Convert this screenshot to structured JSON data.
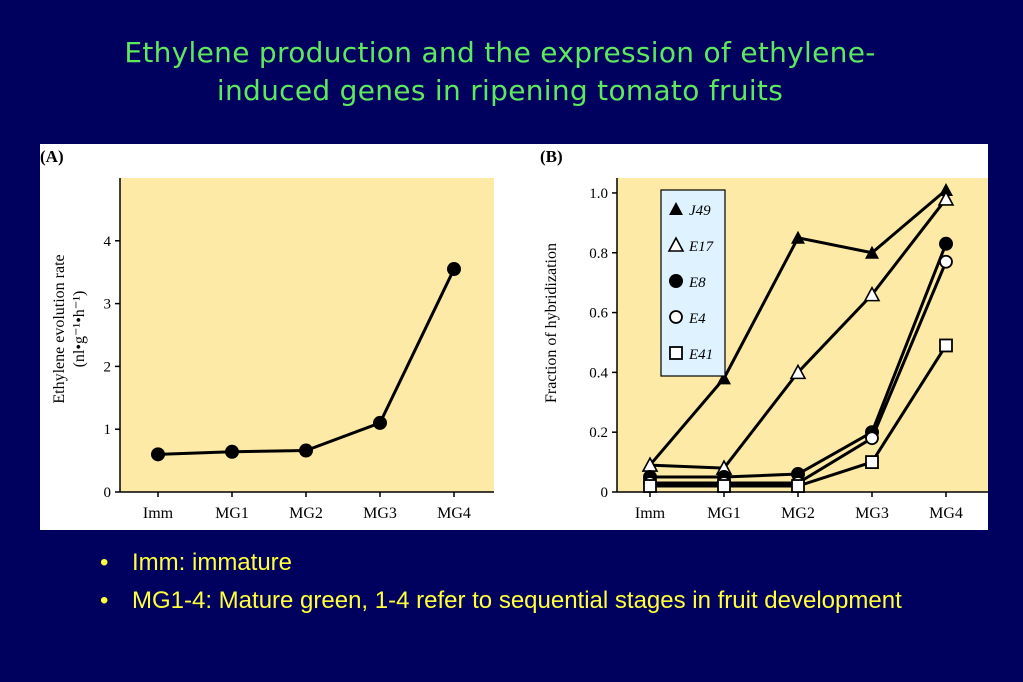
{
  "title": {
    "line1": "Ethylene production and the expression of ethylene-",
    "line2": "induced genes in ripening tomato fruits"
  },
  "colors": {
    "background": "#00005e",
    "title": "#5ee85e",
    "bullets": "#ffff3c",
    "plot_area": "#fdeaa7"
  },
  "bullets": [
    "Imm: immature",
    "MG1-4: Mature green, 1-4 refer to sequential stages in fruit development"
  ],
  "chart_data": [
    {
      "panel": "(A)",
      "type": "line",
      "categories": [
        "Imm",
        "MG1",
        "MG2",
        "MG3",
        "MG4"
      ],
      "ylabel": "Ethylene evolution rate",
      "ylabel_units": "(nl•g⁻¹•h⁻¹)",
      "ylim": [
        0,
        5
      ],
      "yticks": [
        "0",
        "1",
        "2",
        "3",
        "4"
      ],
      "grid": false,
      "series": [
        {
          "values": [
            0.6,
            0.64,
            0.66,
            1.1,
            3.55
          ],
          "marker": "filled-circle"
        }
      ]
    },
    {
      "panel": "(B)",
      "type": "line",
      "categories": [
        "Imm",
        "MG1",
        "MG2",
        "MG3",
        "MG4"
      ],
      "ylabel": "Fraction of hybridization",
      "ylim": [
        0,
        1.05
      ],
      "yticks": [
        "0",
        "0.2",
        "0.4",
        "0.6",
        "0.8",
        "1.0"
      ],
      "grid": false,
      "legend_position": "top-left",
      "series": [
        {
          "name": "J49",
          "marker": "filled-triangle",
          "values": [
            0.09,
            0.38,
            0.85,
            0.8,
            1.01
          ]
        },
        {
          "name": "E17",
          "marker": "open-triangle",
          "values": [
            0.09,
            0.08,
            0.4,
            0.66,
            0.98
          ]
        },
        {
          "name": "E8",
          "marker": "filled-circle",
          "values": [
            0.05,
            0.05,
            0.06,
            0.2,
            0.83
          ]
        },
        {
          "name": "E4",
          "marker": "open-circle",
          "values": [
            0.03,
            0.03,
            0.03,
            0.18,
            0.77
          ]
        },
        {
          "name": "E41",
          "marker": "open-square",
          "values": [
            0.02,
            0.02,
            0.02,
            0.1,
            0.49
          ]
        }
      ]
    }
  ]
}
